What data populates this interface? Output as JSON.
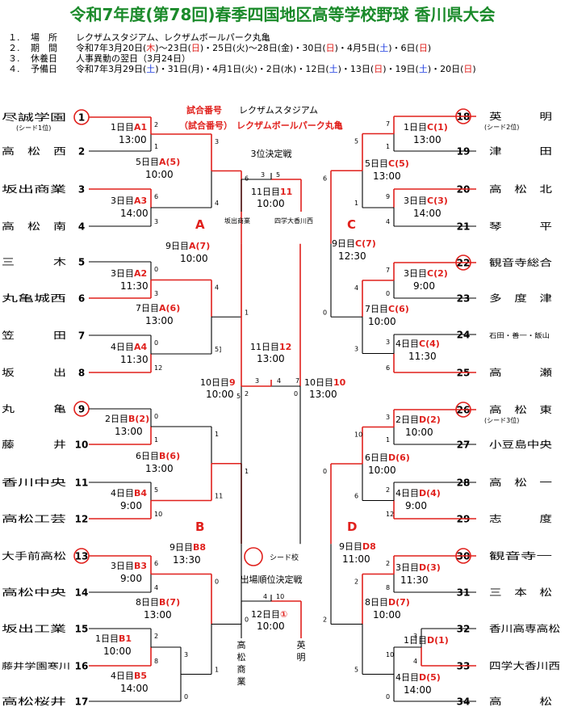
{
  "title": "令和7年度(第78回)春季四国地区高等学校野球 香川県大会",
  "info": [
    {
      "num": "１.",
      "key": "場　所",
      "segs": [
        {
          "t": "レクザムスタジアム、レクザムボールパーク丸亀"
        }
      ]
    },
    {
      "num": "２.",
      "key": "期　間",
      "segs": [
        {
          "t": "令和7年3月20日("
        },
        {
          "t": "木",
          "r": 1
        },
        {
          "t": ")～23日("
        },
        {
          "t": "日",
          "r": 1
        },
        {
          "t": ")・25日(火)～28日(金)・30日("
        },
        {
          "t": "日",
          "r": 1
        },
        {
          "t": ")・4月5日("
        },
        {
          "t": "土",
          "b": 1
        },
        {
          "t": ")・6日("
        },
        {
          "t": "日",
          "r": 1
        },
        {
          "t": ")"
        }
      ]
    },
    {
      "num": "３.",
      "key": "休養日",
      "segs": [
        {
          "t": "人事異動の翌日（3月24日）"
        }
      ]
    },
    {
      "num": "４.",
      "key": "予備日",
      "segs": [
        {
          "t": "令和7年3月29日("
        },
        {
          "t": "土",
          "b": 1
        },
        {
          "t": ")・31日(月)・4月1日(火)・2日(水)・12日("
        },
        {
          "t": "土",
          "b": 1
        },
        {
          "t": ")・13日("
        },
        {
          "t": "日",
          "r": 1
        },
        {
          "t": ")・19日("
        },
        {
          "t": "土",
          "b": 1
        },
        {
          "t": ")・20日("
        },
        {
          "t": "日",
          "r": 1
        },
        {
          "t": ")"
        }
      ]
    }
  ],
  "legend": {
    "line1_label": "試合番号",
    "line1_venue": "レクザムスタジアム",
    "line2_label": "（試合番号）",
    "line2_venue": "レクザムボールパーク丸亀",
    "seed_label": "シード校"
  },
  "left_teams": [
    {
      "no": "1",
      "name": "尽誠学園",
      "seed": true,
      "note": "(シード1位)"
    },
    {
      "no": "2",
      "name": "高　松　西"
    },
    {
      "no": "3",
      "name": "坂出商業"
    },
    {
      "no": "4",
      "name": "高　松　南"
    },
    {
      "no": "5",
      "name": "三　　　木"
    },
    {
      "no": "6",
      "name": "丸亀城西"
    },
    {
      "no": "7",
      "name": "笠　　　田"
    },
    {
      "no": "8",
      "name": "坂　　　出"
    },
    {
      "no": "9",
      "name": "丸　　　亀",
      "seed": true
    },
    {
      "no": "10",
      "name": "藤　　　井"
    },
    {
      "no": "11",
      "name": "香川中央"
    },
    {
      "no": "12",
      "name": "高松工芸"
    },
    {
      "no": "13",
      "name": "大手前高松",
      "seed": true
    },
    {
      "no": "14",
      "name": "高松中央"
    },
    {
      "no": "15",
      "name": "坂出工業"
    },
    {
      "no": "16",
      "name": "藤井学園寒川"
    },
    {
      "no": "17",
      "name": "高松桜井"
    }
  ],
  "right_teams": [
    {
      "no": "18",
      "name": "英　　　明",
      "seed": true,
      "note": "(シード2位)"
    },
    {
      "no": "19",
      "name": "津　　　田"
    },
    {
      "no": "20",
      "name": "高　松　北"
    },
    {
      "no": "21",
      "name": "琴　　　平"
    },
    {
      "no": "22",
      "name": "観音寺総合",
      "seed": true
    },
    {
      "no": "23",
      "name": "多　度　津"
    },
    {
      "no": "24",
      "name": "石田・善一・飯山",
      "small": true
    },
    {
      "no": "25",
      "name": "高　　　瀬"
    },
    {
      "no": "26",
      "name": "高　松　東",
      "seed": true,
      "note": "(シード3位)"
    },
    {
      "no": "27",
      "name": "小豆島中央"
    },
    {
      "no": "28",
      "name": "高　松　一"
    },
    {
      "no": "29",
      "name": "志　　　度"
    },
    {
      "no": "30",
      "name": "観音寺一",
      "seed": true
    },
    {
      "no": "31",
      "name": "三　本　松"
    },
    {
      "no": "32",
      "name": "香川高専高松"
    },
    {
      "no": "33",
      "name": "四学大香川西"
    },
    {
      "no": "34",
      "name": "高　　　松"
    }
  ],
  "games": [
    {
      "id": "A1",
      "day": "1日目",
      "num": "A1",
      "time": "13:00",
      "scores": [
        "2",
        "1"
      ]
    },
    {
      "id": "A5",
      "day": "5日目",
      "num": "A(5)",
      "time": "10:00",
      "scores": [
        "3",
        "4"
      ]
    },
    {
      "id": "A3",
      "day": "3日目",
      "num": "A3",
      "time": "14:00",
      "scores": [
        "6",
        "3"
      ]
    },
    {
      "id": "A7",
      "day": "9日目",
      "num": "A(7)",
      "time": "10:00",
      "scores": [
        "6",
        "1"
      ]
    },
    {
      "id": "A2",
      "day": "3日目",
      "num": "A2",
      "time": "11:30",
      "scores": [
        "0",
        "3"
      ]
    },
    {
      "id": "A6",
      "day": "7日目",
      "num": "A(6)",
      "time": "13:00",
      "scores": [
        "4",
        "5]"
      ]
    },
    {
      "id": "A4",
      "day": "4日目",
      "num": "A4",
      "time": "11:30",
      "scores": [
        "0",
        "12"
      ]
    },
    {
      "id": "B2",
      "day": "2日目",
      "num": "B(2)",
      "time": "13:00",
      "scores": [
        "0",
        "1"
      ]
    },
    {
      "id": "B6",
      "day": "6日目",
      "num": "B(6)",
      "time": "13:00",
      "scores": [
        "1",
        "11"
      ]
    },
    {
      "id": "B4",
      "day": "4日目",
      "num": "B4",
      "time": "9:00",
      "scores": [
        "5",
        "10"
      ]
    },
    {
      "id": "B8",
      "day": "9日目",
      "num": "B8",
      "time": "13:30",
      "scores": [
        "1",
        "0"
      ]
    },
    {
      "id": "B3",
      "day": "3日目",
      "num": "B3",
      "time": "9:00",
      "scores": [
        "6",
        "4"
      ]
    },
    {
      "id": "B7",
      "day": "8日目",
      "num": "B(7)",
      "time": "13:00",
      "scores": [
        "0",
        "1"
      ]
    },
    {
      "id": "B1",
      "day": "1日目",
      "num": "B1",
      "time": "10:00",
      "scores": [
        "2",
        "8"
      ]
    },
    {
      "id": "B5",
      "day": "4日目",
      "num": "B5",
      "time": "14:00",
      "scores": [
        "3",
        "0"
      ]
    },
    {
      "id": "C1",
      "day": "1日目",
      "num": "C(1)",
      "time": "13:00",
      "scores": [
        "7",
        "1"
      ]
    },
    {
      "id": "C5",
      "day": "5日目",
      "num": "C(5)",
      "time": "13:00",
      "scores": [
        "5",
        "1"
      ]
    },
    {
      "id": "C3",
      "day": "3日目",
      "num": "C(3)",
      "time": "14:00",
      "scores": [
        "9",
        "4"
      ]
    },
    {
      "id": "C7",
      "day": "9日目",
      "num": "C(7)",
      "time": "12:30",
      "scores": [
        "6",
        "0"
      ]
    },
    {
      "id": "C2",
      "day": "3日目",
      "num": "C(2)",
      "time": "9:00",
      "scores": [
        "7",
        "0"
      ]
    },
    {
      "id": "C6",
      "day": "7日目",
      "num": "C(6)",
      "time": "10:00",
      "scores": [
        "4",
        "3"
      ]
    },
    {
      "id": "C4",
      "day": "4日目",
      "num": "C(4)",
      "time": "11:30",
      "scores": [
        "3",
        "6"
      ]
    },
    {
      "id": "D2",
      "day": "2日目",
      "num": "D(2)",
      "time": "10:00",
      "scores": [
        "3",
        "1"
      ]
    },
    {
      "id": "D6",
      "day": "6日目",
      "num": "D(6)",
      "time": "10:00",
      "scores": [
        "10",
        "6"
      ]
    },
    {
      "id": "D4",
      "day": "4日目",
      "num": "D(4)",
      "time": "9:00",
      "scores": [
        "2",
        "12"
      ]
    },
    {
      "id": "D8",
      "day": "9日目",
      "num": "D8",
      "time": "11:00",
      "scores": [
        "0",
        "2"
      ]
    },
    {
      "id": "D3",
      "day": "3日目",
      "num": "D(3)",
      "time": "11:30",
      "scores": [
        "2",
        "8"
      ]
    },
    {
      "id": "D7",
      "day": "8日目",
      "num": "D(7)",
      "time": "10:00",
      "scores": [
        "2",
        "5"
      ]
    },
    {
      "id": "D1",
      "day": "1日目",
      "num": "D(1)",
      "time": "",
      "scores": [
        "3",
        "4"
      ]
    },
    {
      "id": "D5",
      "day": "4日目",
      "num": "D(5)",
      "time": "14:00",
      "scores": [
        "10",
        "0"
      ]
    },
    {
      "id": "G9",
      "day": "10日目",
      "num": "9",
      "time": "10:00",
      "scores": [
        "2",
        "5"
      ]
    },
    {
      "id": "G10",
      "day": "10日目",
      "num": "10",
      "time": "13:00",
      "scores": [
        "7",
        "0"
      ]
    },
    {
      "id": "G12",
      "day": "11日目",
      "num": "12",
      "time": "13:00",
      "scores": [
        "3",
        "4"
      ]
    },
    {
      "id": "G11",
      "day": "11日目",
      "num": "11",
      "time": "10:00",
      "scores": [
        "3",
        "5"
      ]
    },
    {
      "id": "GQ",
      "day": "12日目",
      "num": "①",
      "time": "10:00",
      "scores": [
        "4",
        "10"
      ]
    }
  ],
  "block_labels": [
    "A",
    "B",
    "C",
    "D"
  ],
  "third_place": {
    "title": "3位決定戦",
    "left": "坂出商業",
    "right": "四学大香川西"
  },
  "qualifier": {
    "title": "出場順位決定戦",
    "left": "高松商業",
    "right": "英明"
  }
}
